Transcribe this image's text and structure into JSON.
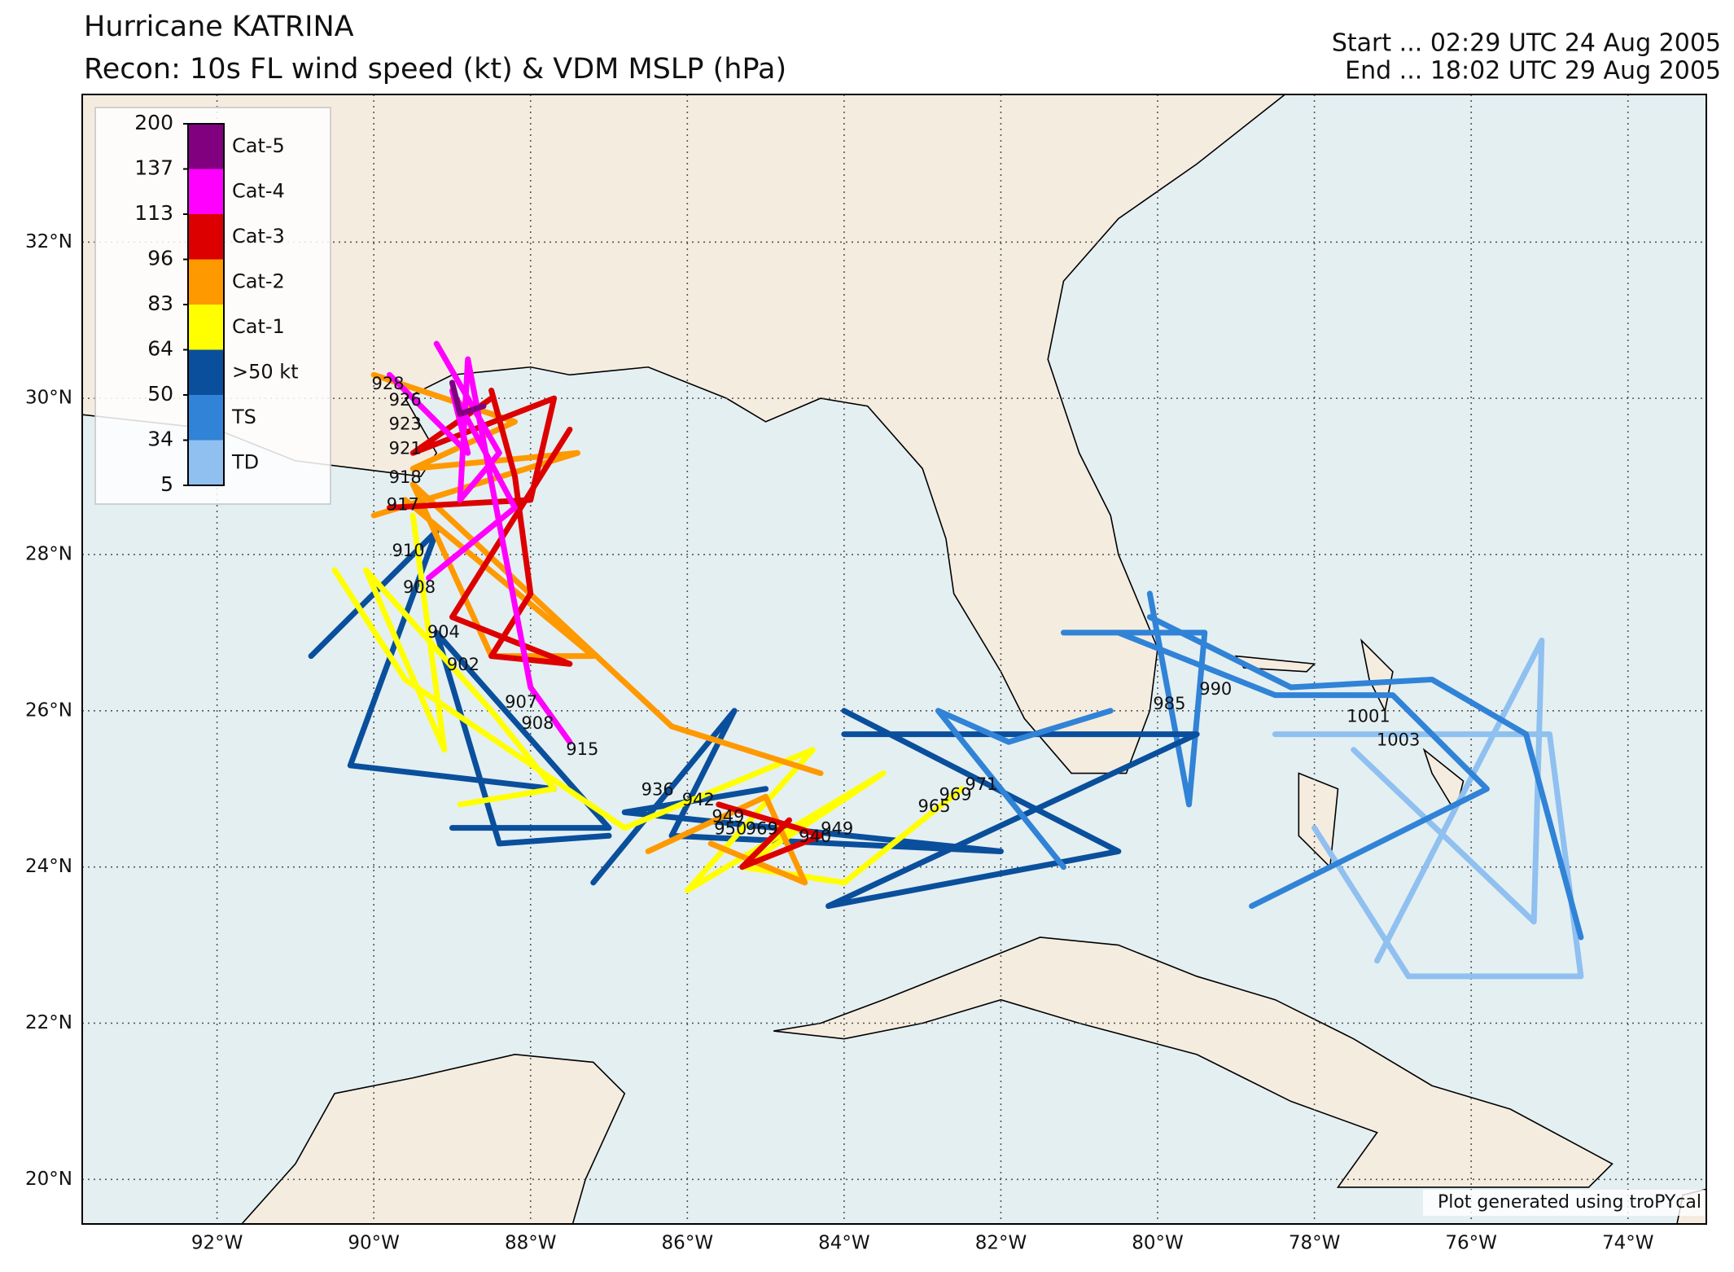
{
  "map": {
    "title": "Hurricane KATRINA",
    "subtitle": "Recon: 10s FL wind speed (kt) & VDM MSLP (hPa)",
    "start": "Start ... 02:29 UTC 24 Aug 2005",
    "end": "End ... 18:02 UTC 29 Aug 2005",
    "credit": "Plot generated using troPYcal",
    "xlim": [
      -93.72,
      -73.0
    ],
    "ylim": [
      19.43,
      33.89
    ],
    "xticks": [
      {
        "value": -92,
        "label": "92°W"
      },
      {
        "value": -90,
        "label": "90°W"
      },
      {
        "value": -88,
        "label": "88°W"
      },
      {
        "value": -86,
        "label": "86°W"
      },
      {
        "value": -84,
        "label": "84°W"
      },
      {
        "value": -82,
        "label": "82°W"
      },
      {
        "value": -80,
        "label": "80°W"
      },
      {
        "value": -78,
        "label": "78°W"
      },
      {
        "value": -76,
        "label": "76°W"
      },
      {
        "value": -74,
        "label": "74°W"
      }
    ],
    "yticks": [
      {
        "value": 20,
        "label": "20°N"
      },
      {
        "value": 22,
        "label": "22°N"
      },
      {
        "value": 24,
        "label": "24°N"
      },
      {
        "value": 26,
        "label": "26°N"
      },
      {
        "value": 28,
        "label": "28°N"
      },
      {
        "value": 30,
        "label": "30°N"
      },
      {
        "value": 32,
        "label": "32°N"
      }
    ],
    "grid": true,
    "colorbar": {
      "ticks": [
        200,
        137,
        113,
        96,
        83,
        64,
        50,
        34,
        5
      ],
      "labels": [
        "Cat-5",
        "Cat-4",
        "Cat-3",
        "Cat-2",
        "Cat-1",
        ">50 kt",
        "TS",
        "TD"
      ],
      "colors": [
        "#80007f",
        "#ff00ff",
        "#dd0000",
        "#ff9900",
        "#ffff00",
        "#0a4f9c",
        "#3083d6",
        "#8fc0f0"
      ]
    },
    "tracks": [
      {
        "wind": 30,
        "lon": [
          -77.2,
          -75.1,
          -75.2,
          -77.5
        ],
        "lat": [
          22.8,
          26.9,
          23.3,
          25.5
        ]
      },
      {
        "wind": 30,
        "lon": [
          -78.5,
          -75.0,
          -74.6,
          -76.8,
          -78.0
        ],
        "lat": [
          25.7,
          25.7,
          22.6,
          22.6,
          24.5
        ]
      },
      {
        "wind": 40,
        "lon": [
          -80.1,
          -78.3,
          -76.5,
          -75.3,
          -74.6
        ],
        "lat": [
          27.2,
          26.3,
          26.4,
          25.7,
          23.1
        ]
      },
      {
        "wind": 40,
        "lon": [
          -80.5,
          -78.5,
          -77.0,
          -75.8,
          -78.8
        ],
        "lat": [
          27.0,
          26.2,
          26.2,
          25.0,
          23.5
        ]
      },
      {
        "wind": 40,
        "lon": [
          -81.2,
          -79.4,
          -79.6,
          -80.1
        ],
        "lat": [
          27.0,
          27.0,
          24.8,
          27.5
        ]
      },
      {
        "wind": 55,
        "lon": [
          -84.0,
          -79.5,
          -84.2,
          -80.5,
          -84.0
        ],
        "lat": [
          25.7,
          25.7,
          23.5,
          24.2,
          26.0
        ]
      },
      {
        "wind": 45,
        "lon": [
          -82.0,
          -81.2,
          -82.8,
          -81.9,
          -80.6
        ],
        "lat": [
          25.0,
          24.0,
          26.0,
          25.6,
          26.0
        ]
      },
      {
        "wind": 55,
        "lon": [
          -87.2,
          -85.4,
          -86.2,
          -82.0,
          -86.8,
          -85.0
        ],
        "lat": [
          23.8,
          26.0,
          24.4,
          24.2,
          24.7,
          25.0
        ]
      },
      {
        "wind": 55,
        "lon": [
          -90.8,
          -89.2,
          -90.3,
          -87.7
        ],
        "lat": [
          26.7,
          28.3,
          25.3,
          25.0
        ]
      },
      {
        "wind": 55,
        "lon": [
          -89.0,
          -87.0,
          -89.2,
          -88.4,
          -87.0
        ],
        "lat": [
          24.5,
          24.5,
          27.0,
          24.3,
          24.4
        ]
      },
      {
        "wind": 70,
        "lon": [
          -90.5,
          -89.6,
          -86.8,
          -84.4,
          -86.0,
          -83.5,
          -85.3,
          -84.0,
          -82.5
        ],
        "lat": [
          27.8,
          26.4,
          24.5,
          25.5,
          23.7,
          25.2,
          24.0,
          23.8,
          25.0
        ]
      },
      {
        "wind": 70,
        "lon": [
          -88.9,
          -87.7,
          -88.5,
          -90.1,
          -89.1,
          -89.5
        ],
        "lat": [
          24.8,
          25.0,
          26.0,
          27.8,
          25.5,
          28.5
        ]
      },
      {
        "wind": 90,
        "lon": [
          -89.6,
          -87.2,
          -88.5,
          -89.5,
          -86.2,
          -84.3
        ],
        "lat": [
          28.7,
          26.7,
          26.7,
          28.9,
          25.8,
          25.2
        ]
      },
      {
        "wind": 90,
        "lon": [
          -90.0,
          -88.2,
          -89.5,
          -87.4,
          -90.0
        ],
        "lat": [
          30.3,
          29.7,
          29.1,
          29.3,
          28.5
        ]
      },
      {
        "wind": 90,
        "lon": [
          -86.5,
          -85.0,
          -84.5,
          -85.7
        ],
        "lat": [
          24.2,
          24.9,
          23.8,
          24.3
        ]
      },
      {
        "wind": 105,
        "lon": [
          -88.5,
          -88.2,
          -88.0,
          -88.5,
          -87.5,
          -89.0,
          -87.5
        ],
        "lat": [
          30.1,
          29.0,
          27.5,
          26.7,
          26.6,
          27.2,
          29.6
        ]
      },
      {
        "wind": 105,
        "lon": [
          -85.6,
          -84.6,
          -84.3,
          -85.3,
          -84.7
        ],
        "lat": [
          24.8,
          24.5,
          24.4,
          24.0,
          24.6
        ]
      },
      {
        "wind": 105,
        "lon": [
          -89.8,
          -88.0,
          -87.7,
          -89.5,
          -88.5
        ],
        "lat": [
          28.6,
          28.7,
          30.0,
          29.3,
          30.0
        ]
      },
      {
        "wind": 125,
        "lon": [
          -89.2,
          -88.4,
          -88.9,
          -88.8,
          -88.0,
          -87.5
        ],
        "lat": [
          30.7,
          29.3,
          28.7,
          30.5,
          26.3,
          25.6
        ]
      },
      {
        "wind": 125,
        "lon": [
          -89.8,
          -88.8,
          -89.0,
          -88.2,
          -89.3
        ],
        "lat": [
          30.3,
          29.3,
          30.1,
          28.6,
          27.7
        ]
      },
      {
        "wind": 145,
        "lon": [
          -89.0,
          -88.9,
          -88.6
        ],
        "lat": [
          30.2,
          29.8,
          29.9
        ]
      }
    ],
    "mslp": [
      {
        "value": 928,
        "lon": -89.82,
        "lat": 30.18
      },
      {
        "value": 926,
        "lon": -89.6,
        "lat": 29.97
      },
      {
        "value": 923,
        "lon": -89.6,
        "lat": 29.66
      },
      {
        "value": 921,
        "lon": -89.6,
        "lat": 29.35
      },
      {
        "value": 918,
        "lon": -89.6,
        "lat": 28.98
      },
      {
        "value": 917,
        "lon": -89.63,
        "lat": 28.63
      },
      {
        "value": 910,
        "lon": -89.56,
        "lat": 28.04
      },
      {
        "value": 908,
        "lon": -89.42,
        "lat": 27.57
      },
      {
        "value": 904,
        "lon": -89.11,
        "lat": 27.0
      },
      {
        "value": 902,
        "lon": -88.86,
        "lat": 26.58
      },
      {
        "value": 907,
        "lon": -88.12,
        "lat": 26.1
      },
      {
        "value": 908,
        "lon": -87.91,
        "lat": 25.83
      },
      {
        "value": 915,
        "lon": -87.34,
        "lat": 25.5
      },
      {
        "value": 936,
        "lon": -86.38,
        "lat": 24.98
      },
      {
        "value": 942,
        "lon": -85.86,
        "lat": 24.85
      },
      {
        "value": 949,
        "lon": -85.48,
        "lat": 24.64
      },
      {
        "value": 950,
        "lon": -85.45,
        "lat": 24.48
      },
      {
        "value": 969,
        "lon": -85.05,
        "lat": 24.48
      },
      {
        "value": 940,
        "lon": -84.37,
        "lat": 24.38
      },
      {
        "value": 949,
        "lon": -84.09,
        "lat": 24.48
      },
      {
        "value": 965,
        "lon": -82.85,
        "lat": 24.77
      },
      {
        "value": 969,
        "lon": -82.58,
        "lat": 24.92
      },
      {
        "value": 971,
        "lon": -82.25,
        "lat": 25.05
      },
      {
        "value": 985,
        "lon": -79.85,
        "lat": 26.08
      },
      {
        "value": 990,
        "lon": -79.26,
        "lat": 26.27
      },
      {
        "value": 1001,
        "lon": -77.31,
        "lat": 25.92
      },
      {
        "value": 1003,
        "lon": -76.93,
        "lat": 25.62
      }
    ]
  }
}
